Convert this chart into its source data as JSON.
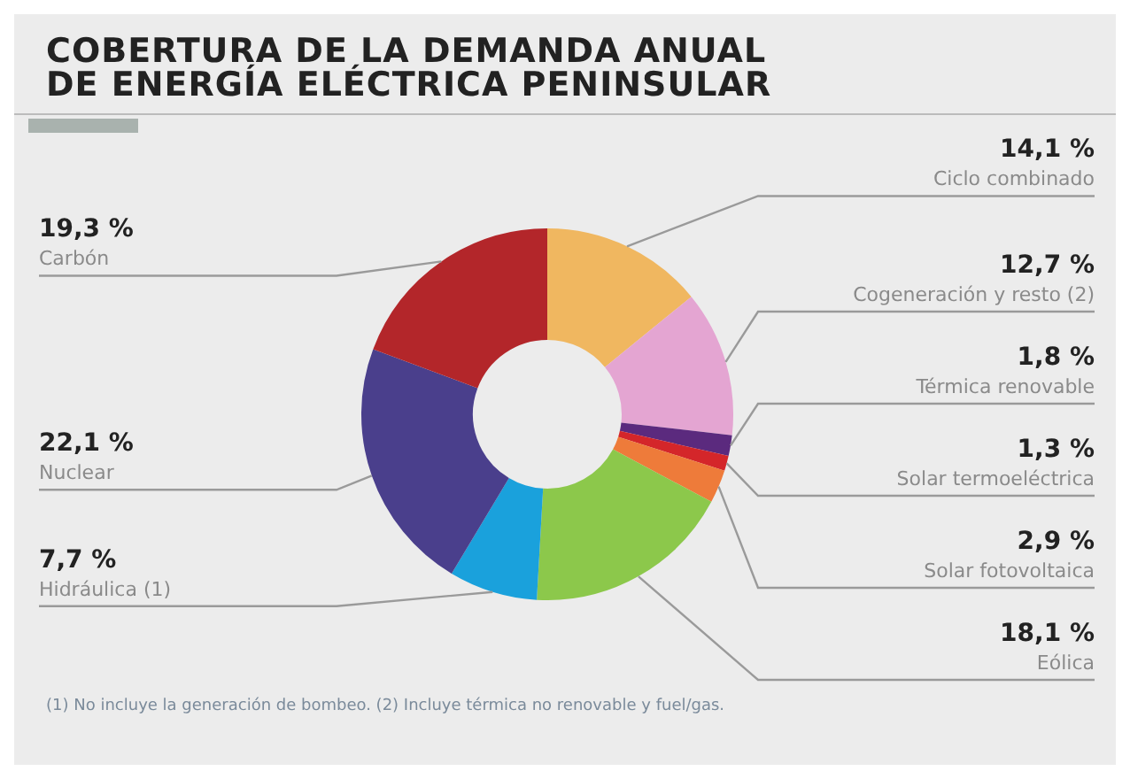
{
  "chart_data": {
    "type": "donut",
    "title": "COBERTURA DE LA DEMANDA ANUAL DE ENERGÍA ELÉCTRICA PENINSULAR",
    "categories": [
      "Ciclo combinado",
      "Cogeneración y resto (2)",
      "Térmica renovable",
      "Solar termoeléctrica",
      "Solar fotovoltaica",
      "Eólica",
      "Hidráulica (1)",
      "Nuclear",
      "Carbón"
    ],
    "values": [
      14.1,
      12.7,
      1.8,
      1.3,
      2.9,
      18.1,
      7.7,
      22.1,
      19.3
    ],
    "colors": [
      "#f0b760",
      "#e4a5d2",
      "#5b2a7e",
      "#d4262a",
      "#ee7b3a",
      "#8cc84b",
      "#1aa1dc",
      "#4a3f8c",
      "#b3262a"
    ],
    "value_labels": [
      "14,1 %",
      "12,7 %",
      "1,8 %",
      "1,3 %",
      "2,9 %",
      "18,1 %",
      "7,7 %",
      "22,1 %",
      "19,3 %"
    ],
    "annotations": [
      "(1) No incluye la generación de bombeo. (2) Incluye térmica no renovable y fuel/gas."
    ]
  }
}
